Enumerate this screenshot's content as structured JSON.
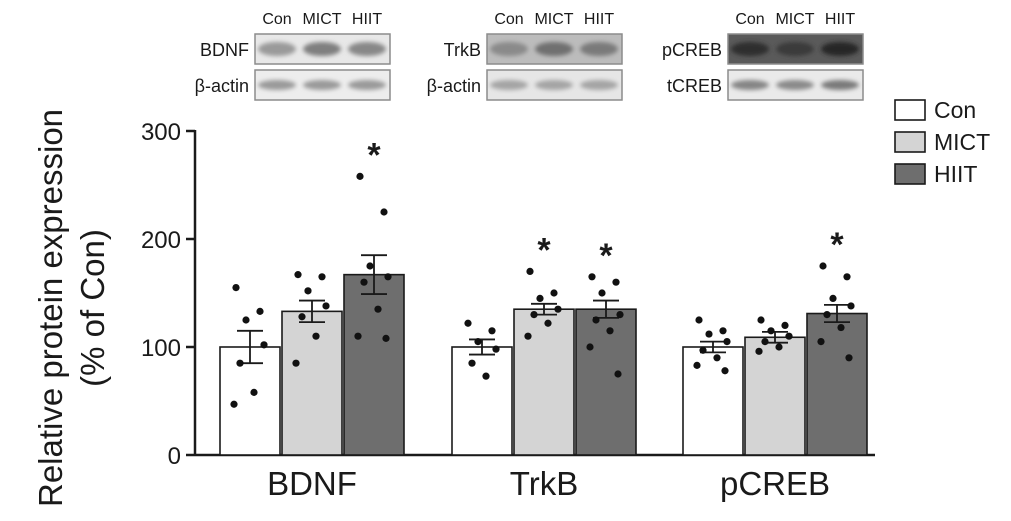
{
  "chart_data": {
    "type": "bar",
    "ylabel_line1": "Relative protein expression",
    "ylabel_line2": "(% of Con)",
    "yticks": [
      "0",
      "100",
      "200",
      "300"
    ],
    "ylim": [
      0,
      300
    ],
    "categories": [
      "BDNF",
      "TrkB",
      "pCREB"
    ],
    "legend_position": "top-right",
    "series": [
      {
        "name": "Con",
        "color": "#ffffff",
        "values": [
          100,
          100,
          100
        ],
        "sem": [
          15,
          7,
          5
        ],
        "significant": [
          false,
          false,
          false
        ],
        "points": [
          [
            155,
            133,
            125,
            102,
            85,
            58,
            47
          ],
          [
            122,
            115,
            105,
            98,
            85,
            73
          ],
          [
            125,
            115,
            112,
            105,
            97,
            90,
            83,
            78
          ]
        ]
      },
      {
        "name": "MICT",
        "color": "#d4d4d4",
        "values": [
          133,
          135,
          109
        ],
        "sem": [
          10,
          5,
          5
        ],
        "significant": [
          false,
          true,
          false
        ],
        "points": [
          [
            167,
            165,
            152,
            138,
            128,
            110,
            85
          ],
          [
            170,
            150,
            145,
            135,
            130,
            122,
            110
          ],
          [
            125,
            120,
            115,
            110,
            105,
            100,
            96
          ]
        ]
      },
      {
        "name": "HIIT",
        "color": "#6e6e6e",
        "values": [
          167,
          135,
          131
        ],
        "sem": [
          18,
          8,
          8
        ],
        "significant": [
          true,
          true,
          true
        ],
        "points": [
          [
            258,
            225,
            175,
            165,
            160,
            135,
            110,
            108
          ],
          [
            165,
            160,
            150,
            130,
            125,
            115,
            100,
            75
          ],
          [
            175,
            165,
            145,
            138,
            130,
            118,
            105,
            90
          ]
        ]
      }
    ],
    "significance_marker": "*"
  },
  "blots": [
    {
      "header": [
        "Con",
        "MICT",
        "HIIT"
      ],
      "top_label": "BDNF",
      "bottom_label": "β-actin"
    },
    {
      "header": [
        "Con",
        "MICT",
        "HIIT"
      ],
      "top_label": "TrkB",
      "bottom_label": "β-actin"
    },
    {
      "header": [
        "Con",
        "MICT",
        "HIIT"
      ],
      "top_label": "pCREB",
      "bottom_label": "tCREB"
    }
  ]
}
